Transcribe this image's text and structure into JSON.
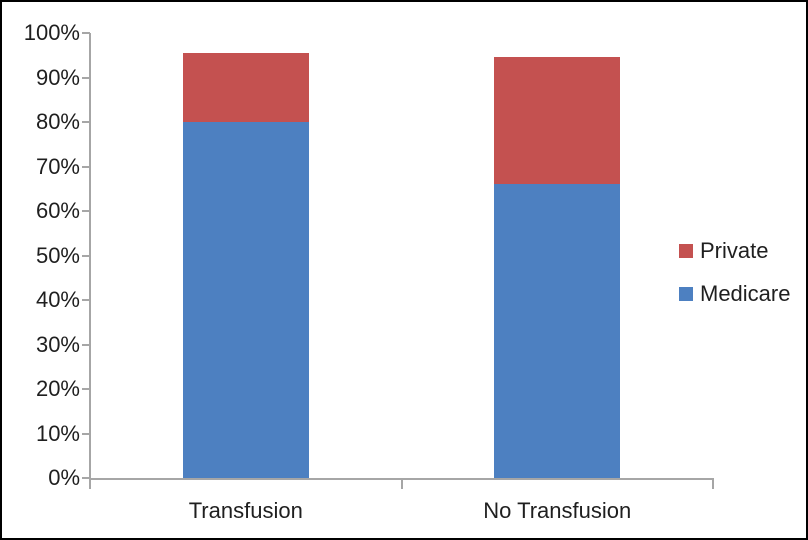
{
  "chart_data": {
    "type": "bar",
    "stacked": true,
    "title": "",
    "xlabel": "",
    "ylabel": "",
    "categories": [
      "Transfusion",
      "No Transfusion"
    ],
    "series": [
      {
        "name": "Medicare",
        "color": "#4D80C1",
        "values": [
          80,
          66
        ]
      },
      {
        "name": "Private",
        "color": "#C45150",
        "values": [
          15.5,
          28.5
        ]
      }
    ],
    "totals_percent": [
      95.5,
      94.5
    ],
    "y_axis": {
      "min": 0,
      "max": 100,
      "step": 10,
      "suffix": "%"
    },
    "legend": {
      "position": "right",
      "order": [
        "Private",
        "Medicare"
      ]
    },
    "grid": false,
    "colors": {
      "axis": "#A6A6A6",
      "text": "#1F1F1F",
      "background": "#FFFFFF",
      "border": "#000000"
    }
  }
}
